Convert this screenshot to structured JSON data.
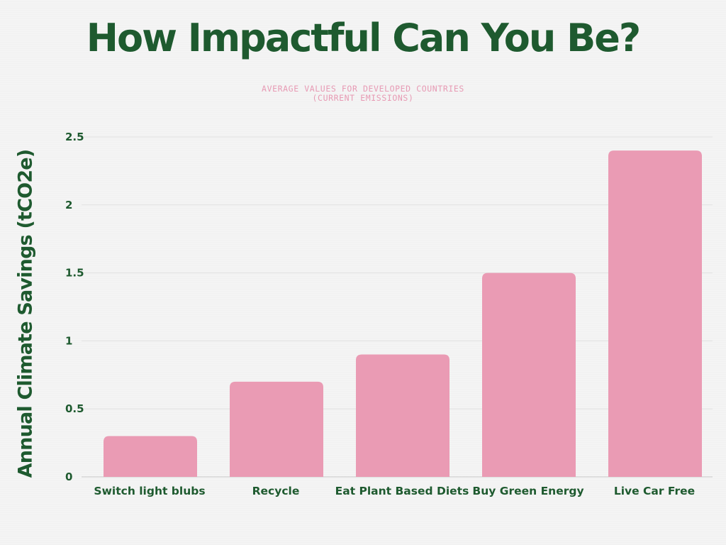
{
  "chart_data": {
    "type": "bar",
    "title": "How Impactful Can You Be?",
    "subtitle": "AVERAGE VALUES FOR DEVELOPED COUNTRIES (CURRENT EMISSIONS)",
    "ylabel": "Annual Climate Savings (tCO2e)",
    "xlabel": "",
    "categories": [
      "Switch light blubs",
      "Recycle",
      "Eat Plant Based Diets",
      "Buy Green Energy",
      "Live Car Free"
    ],
    "values": [
      0.3,
      0.7,
      0.9,
      1.5,
      2.4
    ],
    "yticks": [
      "0",
      "0.5",
      "1",
      "1.5",
      "2",
      "2.5"
    ],
    "ylim": [
      0,
      2.5
    ],
    "grid": true,
    "legend": "none",
    "colors": {
      "bar": "#ea9bb4",
      "text": "#1e5a2f",
      "subtitle": "#e79ab4",
      "grid": "#e2e2e2",
      "baseline": "#c8c8c8"
    }
  }
}
